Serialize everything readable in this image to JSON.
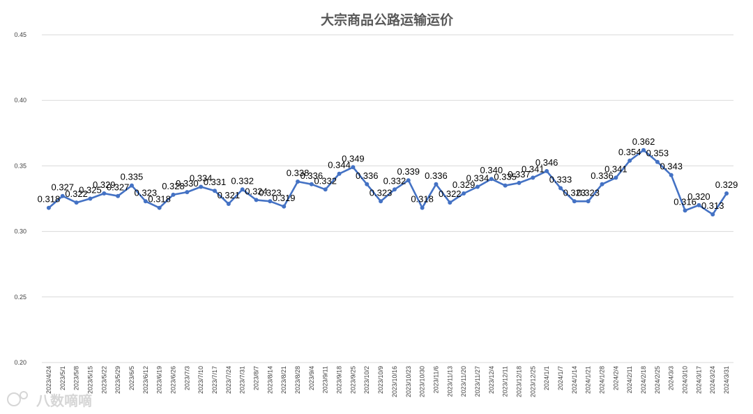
{
  "watermark": "八数嘀嘀",
  "chart_data": {
    "type": "line",
    "title": "大宗商品公路运输运价",
    "xlabel": "",
    "ylabel": "",
    "ylim": [
      0.2,
      0.45
    ],
    "yticks": [
      "0.45",
      "0.40",
      "0.35",
      "0.30",
      "0.25",
      "0.20"
    ],
    "grid": true,
    "legend": "none",
    "color": "#4472C4",
    "categories": [
      "2023/4/24",
      "2023/5/1",
      "2023/5/8",
      "2023/5/15",
      "2023/5/22",
      "2023/5/29",
      "2023/6/5",
      "2023/6/12",
      "2023/6/19",
      "2023/6/26",
      "2023/7/3",
      "2023/7/10",
      "2023/7/17",
      "2023/7/24",
      "2023/7/31",
      "2023/8/7",
      "2023/8/14",
      "2023/8/21",
      "2023/8/28",
      "2023/9/4",
      "2023/9/11",
      "2023/9/18",
      "2023/9/25",
      "2023/10/2",
      "2023/10/9",
      "2023/10/16",
      "2023/10/23",
      "2023/10/30",
      "2023/11/6",
      "2023/11/13",
      "2023/11/20",
      "2023/11/27",
      "2023/12/4",
      "2023/12/11",
      "2023/12/18",
      "2023/12/25",
      "2024/1/1",
      "2024/1/7",
      "2024/1/14",
      "2024/1/21",
      "2024/1/28",
      "2024/2/4",
      "2024/2/11",
      "2024/2/18",
      "2024/2/25",
      "2024/3/3",
      "2024/3/10",
      "2024/3/17",
      "2024/3/24",
      "2024/3/31"
    ],
    "values": [
      0.318,
      0.327,
      0.322,
      0.325,
      0.329,
      0.327,
      0.335,
      0.323,
      0.318,
      0.328,
      0.33,
      0.334,
      0.331,
      0.321,
      0.332,
      0.324,
      0.323,
      0.319,
      0.338,
      0.336,
      0.332,
      0.344,
      0.349,
      0.336,
      0.323,
      0.332,
      0.339,
      0.318,
      0.336,
      0.322,
      0.329,
      0.334,
      0.34,
      0.335,
      0.337,
      0.341,
      0.346,
      0.333,
      0.323,
      0.323,
      0.336,
      0.341,
      0.354,
      0.362,
      0.353,
      0.343,
      0.316,
      0.32,
      0.313,
      0.329
    ],
    "labels": [
      "0.318",
      "0.327",
      "0.322",
      "0.325",
      "0.329",
      "0.327",
      "0.335",
      "0.323",
      "0.318",
      "0.328",
      "0.330",
      "0.334",
      "0.331",
      "0.321",
      "0.332",
      "0.324",
      "0.323",
      "0.319",
      "0.338",
      "0.336",
      "0.332",
      "0.344",
      "0.349",
      "0.336",
      "0.323",
      "0.332",
      "0.339",
      "0.318",
      "0.336",
      "0.322",
      "0.329",
      "0.334",
      "0.340",
      "0.335",
      "0.337",
      "0.341",
      "0.346",
      "0.333",
      "0.323",
      "0.323",
      "0.336",
      "0.341",
      "0.354",
      "0.362",
      "0.353",
      "0.343",
      "0.316",
      "0.320",
      "0.313",
      "0.329"
    ]
  }
}
